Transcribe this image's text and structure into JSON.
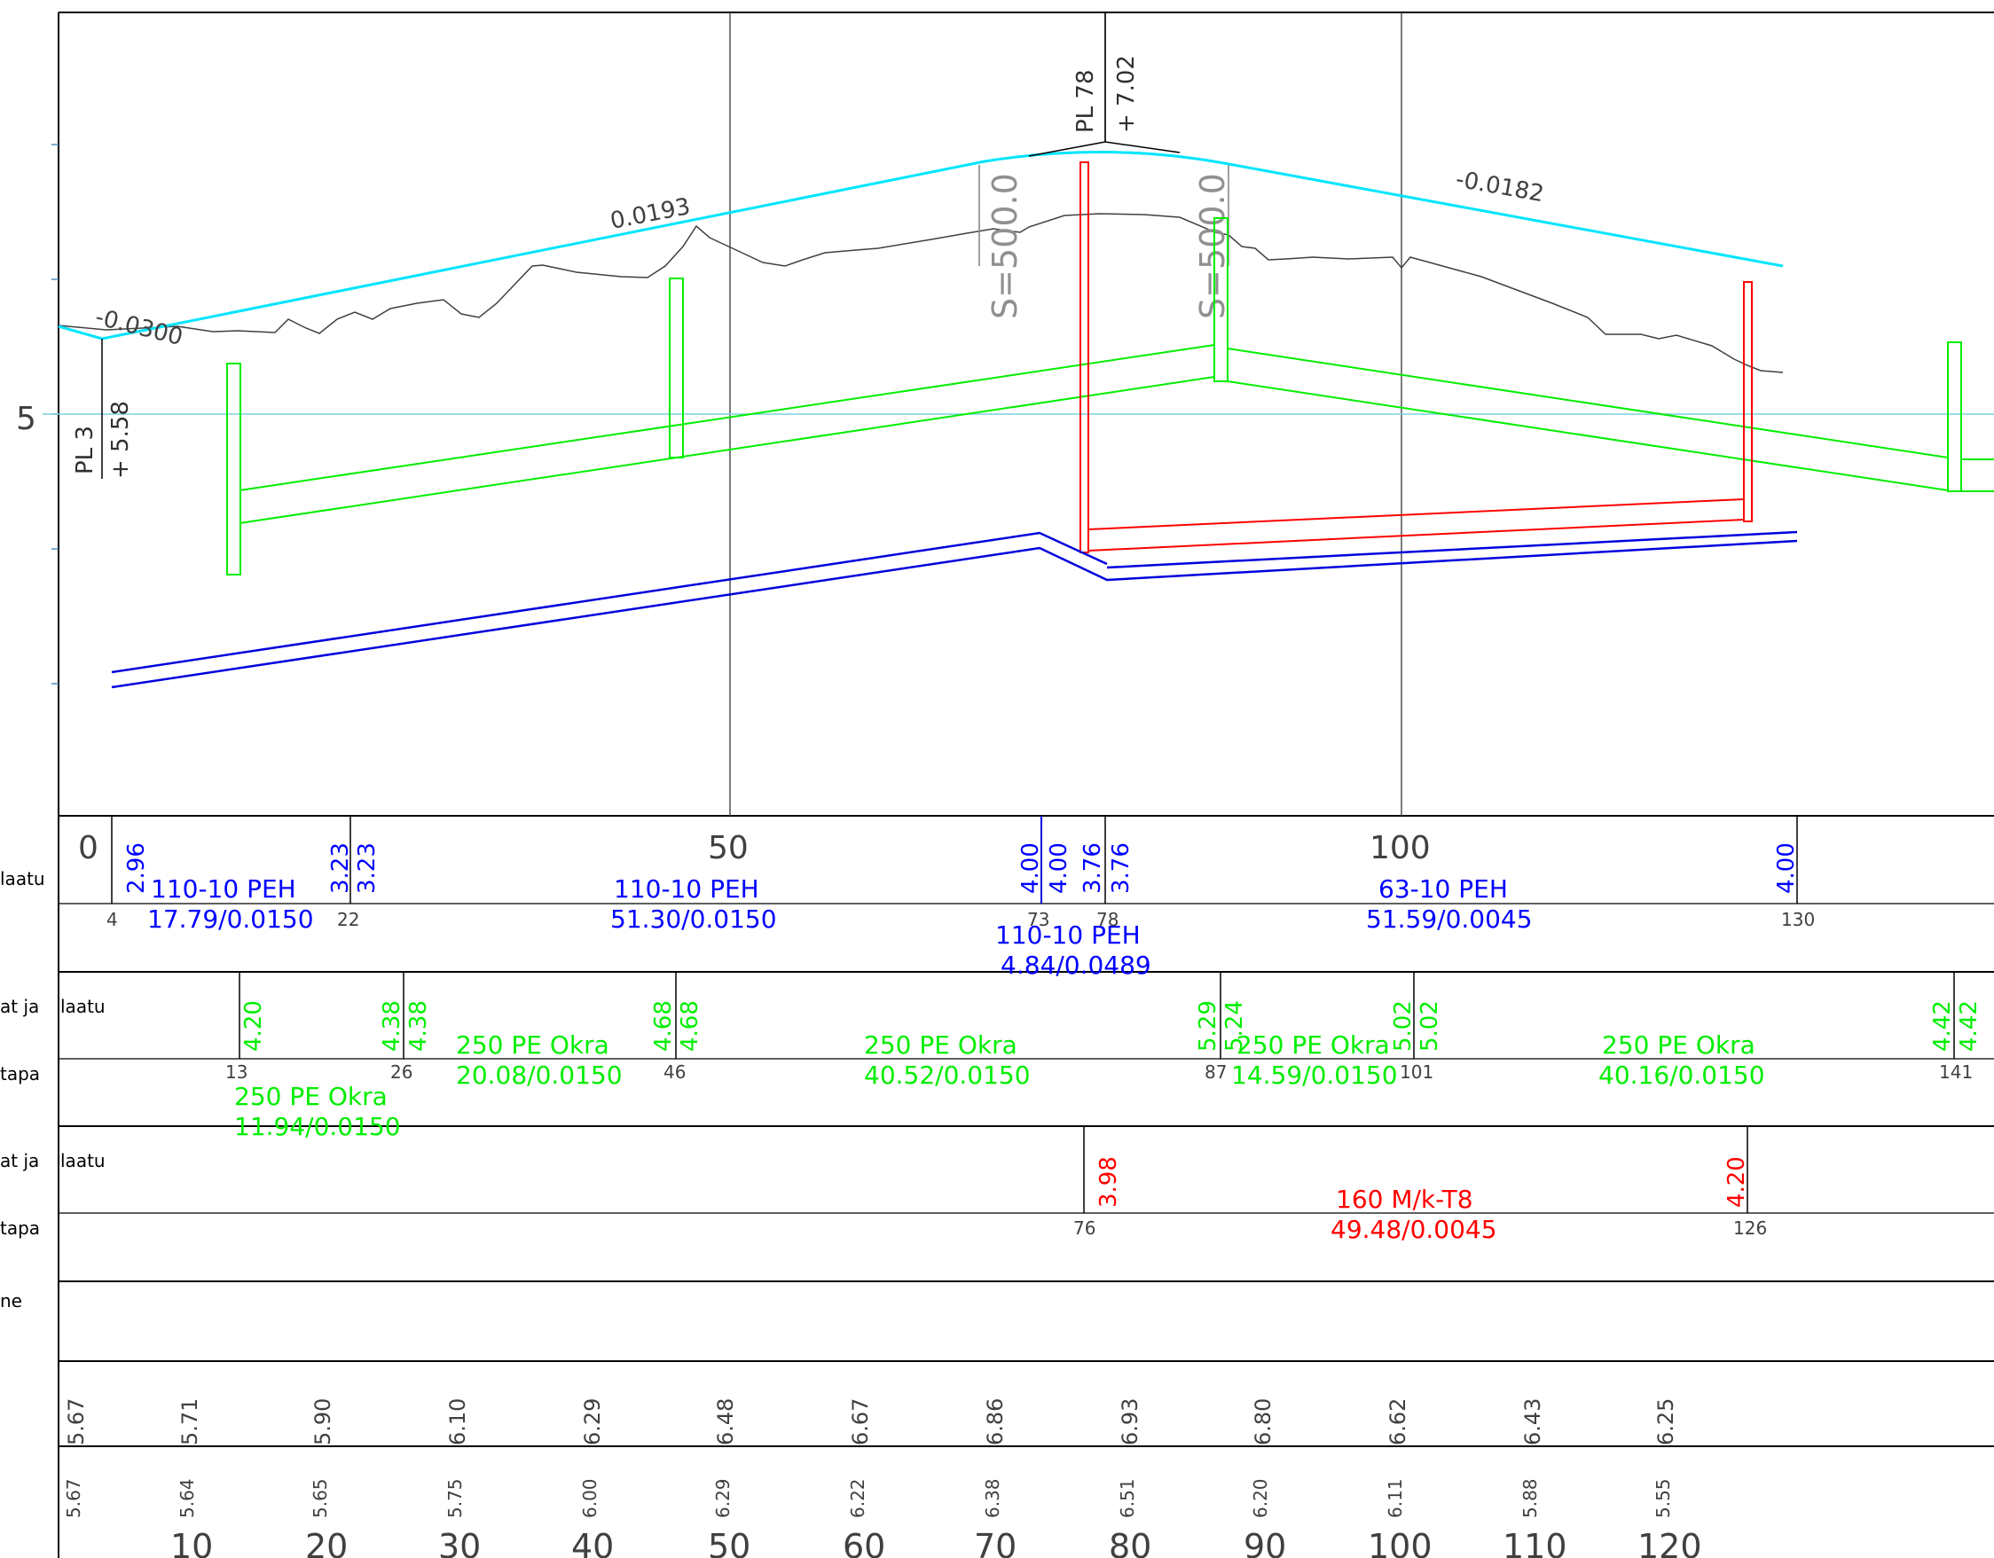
{
  "colors": {
    "background": "#ffffff",
    "frame": "#000000",
    "grid": "#505050",
    "terrain": "#404040",
    "design_line": "#00e5ff",
    "horizontal_ref": "#7ad0e0",
    "water_pipe": "#0000dd",
    "sewer_pipe": "#00ee00",
    "storm_pipe": "#ff0000"
  },
  "profile": {
    "y_tick_label": "5",
    "grades": [
      "-0.0300",
      "0.0193",
      "-0.0182"
    ],
    "vertical_curves": [
      "S=500.0",
      "S=500.0"
    ],
    "pl_points": [
      {
        "name": "PL 3",
        "elev": "+ 5.58"
      },
      {
        "name": "PL 78",
        "elev": "+ 7.02"
      }
    ]
  },
  "bands": {
    "water": {
      "left_label": "laatu",
      "station_labels": [
        "0",
        "50",
        "100"
      ],
      "depths": [
        "2.96",
        "3.23",
        "3.23",
        "4.00",
        "4.00",
        "3.76",
        "3.76",
        "4.00"
      ],
      "node_numbers": [
        "4",
        "22",
        "73",
        "78",
        "130"
      ],
      "pipes": [
        {
          "type": "110-10 PEH",
          "len_slope": "17.79/0.0150"
        },
        {
          "type": "110-10 PEH",
          "len_slope": "51.30/0.0150"
        },
        {
          "type": "110-10 PEH",
          "len_slope": "4.84/0.0489"
        },
        {
          "type": "63-10 PEH",
          "len_slope": "51.59/0.0045"
        }
      ]
    },
    "sewer": {
      "left_label": "at ja",
      "left_label_2": "tapa",
      "inner_label": "laatu",
      "depths": [
        "4.20",
        "4.38",
        "4.38",
        "4.68",
        "4.68",
        "5.29",
        "5.24",
        "5.02",
        "5.02",
        "4.42",
        "4.42"
      ],
      "node_numbers": [
        "13",
        "26",
        "46",
        "87",
        "101",
        "141"
      ],
      "pipes": [
        {
          "type": "250 PE Okra",
          "len_slope": "11.94/0.0150"
        },
        {
          "type": "250 PE Okra",
          "len_slope": "20.08/0.0150"
        },
        {
          "type": "250 PE Okra",
          "len_slope": "40.52/0.0150"
        },
        {
          "type": "250 PE Okra",
          "len_slope": "14.59/0.0150"
        },
        {
          "type": "250 PE Okra",
          "len_slope": "40.16/0.0150"
        }
      ]
    },
    "storm": {
      "left_label": "at ja",
      "left_label_2": "tapa",
      "inner_label": "laatu",
      "depths": [
        "3.98",
        "4.20"
      ],
      "node_numbers": [
        "76",
        "126"
      ],
      "pipes": [
        {
          "type": "160 M/k-T8",
          "len_slope": "49.48/0.0045"
        }
      ]
    },
    "extra": {
      "left_label": "ne"
    },
    "design_elevations": [
      "5.67",
      "5.71",
      "5.90",
      "6.10",
      "6.29",
      "6.48",
      "6.67",
      "6.86",
      "6.93",
      "6.80",
      "6.62",
      "6.43",
      "6.25"
    ],
    "ground_elevations": [
      "5.67",
      "5.64",
      "5.65",
      "5.75",
      "6.00",
      "6.29",
      "6.22",
      "6.38",
      "6.51",
      "6.20",
      "6.11",
      "5.88",
      "5.55"
    ],
    "stations": [
      "10",
      "20",
      "30",
      "40",
      "50",
      "60",
      "70",
      "80",
      "90",
      "100",
      "110",
      "120"
    ]
  }
}
